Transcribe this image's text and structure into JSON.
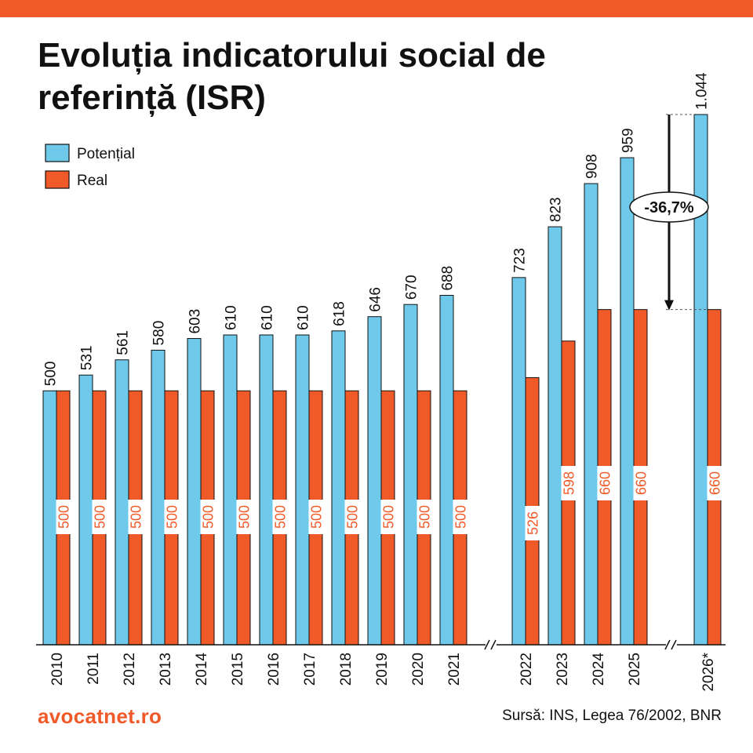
{
  "header": {
    "title": "Evoluția indicatorului social de referință (ISR)",
    "bar_color": "#F05A28"
  },
  "footer": {
    "brand": "avocatnet.ro",
    "source": "Sursă: INS, Legea 76/2002, BNR",
    "brand_color": "#F05A28"
  },
  "chart_data": {
    "type": "bar",
    "categories": [
      "2010",
      "2011",
      "2012",
      "2013",
      "2014",
      "2015",
      "2016",
      "2017",
      "2018",
      "2019",
      "2020",
      "2021",
      "2022",
      "2023",
      "2024",
      "2025",
      "2026*"
    ],
    "series": [
      {
        "name": "Potențial",
        "color": "#6EC9EB",
        "values": [
          500,
          531,
          561,
          580,
          603,
          610,
          610,
          610,
          618,
          646,
          670,
          688,
          723,
          823,
          908,
          959,
          1044
        ],
        "labels": [
          "500",
          "531",
          "561",
          "580",
          "603",
          "610",
          "610",
          "610",
          "618",
          "646",
          "670",
          "688",
          "723",
          "823",
          "908",
          "959",
          "1.044"
        ]
      },
      {
        "name": "Real",
        "color": "#F05A28",
        "values": [
          500,
          500,
          500,
          500,
          500,
          500,
          500,
          500,
          500,
          500,
          500,
          500,
          526,
          598,
          660,
          660,
          660
        ],
        "labels": [
          "500",
          "500",
          "500",
          "500",
          "500",
          "500",
          "500",
          "500",
          "500",
          "500",
          "500",
          "500",
          "526",
          "598",
          "660",
          "660",
          "660"
        ]
      }
    ],
    "axis_breaks": [
      "2021-2022",
      "2025-2026*"
    ],
    "ylim": [
      0,
      1044
    ],
    "grid": false,
    "legend": "top-left",
    "annotation": {
      "text": "-36,7%",
      "from": 1044,
      "to": 660,
      "category": "2026*"
    }
  }
}
